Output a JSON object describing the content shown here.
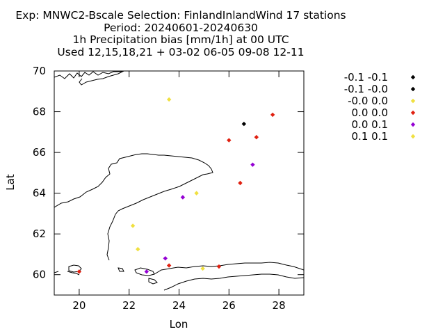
{
  "chart_data": {
    "type": "scatter",
    "title_lines": [
      "Exp: MNWC2-Bscale   Selection: FinlandInlandWind     17 stations",
      "Period: 20240601-20240630",
      "1h Precipitation bias [mm/1h] at  00 UTC",
      "Used 12,15,18,21 + 03-02 06-05 09-08 12-11"
    ],
    "xlabel": "Lon",
    "ylabel": "Lat",
    "xlim": [
      19,
      29
    ],
    "ylim": [
      59,
      70
    ],
    "xticks": [
      20,
      22,
      24,
      26,
      28
    ],
    "yticks": [
      60,
      62,
      64,
      66,
      68,
      70
    ],
    "grid": false,
    "legend_position": "right",
    "series": [
      {
        "name": "-0.1 -0.1",
        "color": "#000000",
        "points": [
          [
            26.6,
            67.4
          ]
        ]
      },
      {
        "name": "-0.1 -0.0",
        "color": "#000000",
        "points": []
      },
      {
        "name": "-0.0 0.0",
        "color": "#f0e040",
        "points": [
          [
            23.6,
            68.6
          ],
          [
            24.7,
            64.0
          ],
          [
            22.15,
            62.4
          ],
          [
            22.35,
            61.25
          ],
          [
            24.95,
            60.3
          ]
        ]
      },
      {
        "name": "0.0 0.0",
        "color": "#e02010",
        "points": [
          [
            27.75,
            67.85
          ],
          [
            27.1,
            66.75
          ],
          [
            26.0,
            66.6
          ],
          [
            26.45,
            64.5
          ],
          [
            20.0,
            60.15
          ],
          [
            23.6,
            60.45
          ],
          [
            25.6,
            60.4
          ]
        ]
      },
      {
        "name": "0.0 0.1",
        "color": "#9400d3",
        "points": [
          [
            26.95,
            65.4
          ],
          [
            24.15,
            63.8
          ],
          [
            23.45,
            60.8
          ],
          [
            22.7,
            60.15
          ]
        ]
      },
      {
        "name": "0.1 0.1",
        "color": "#f0e040",
        "points": []
      }
    ]
  }
}
